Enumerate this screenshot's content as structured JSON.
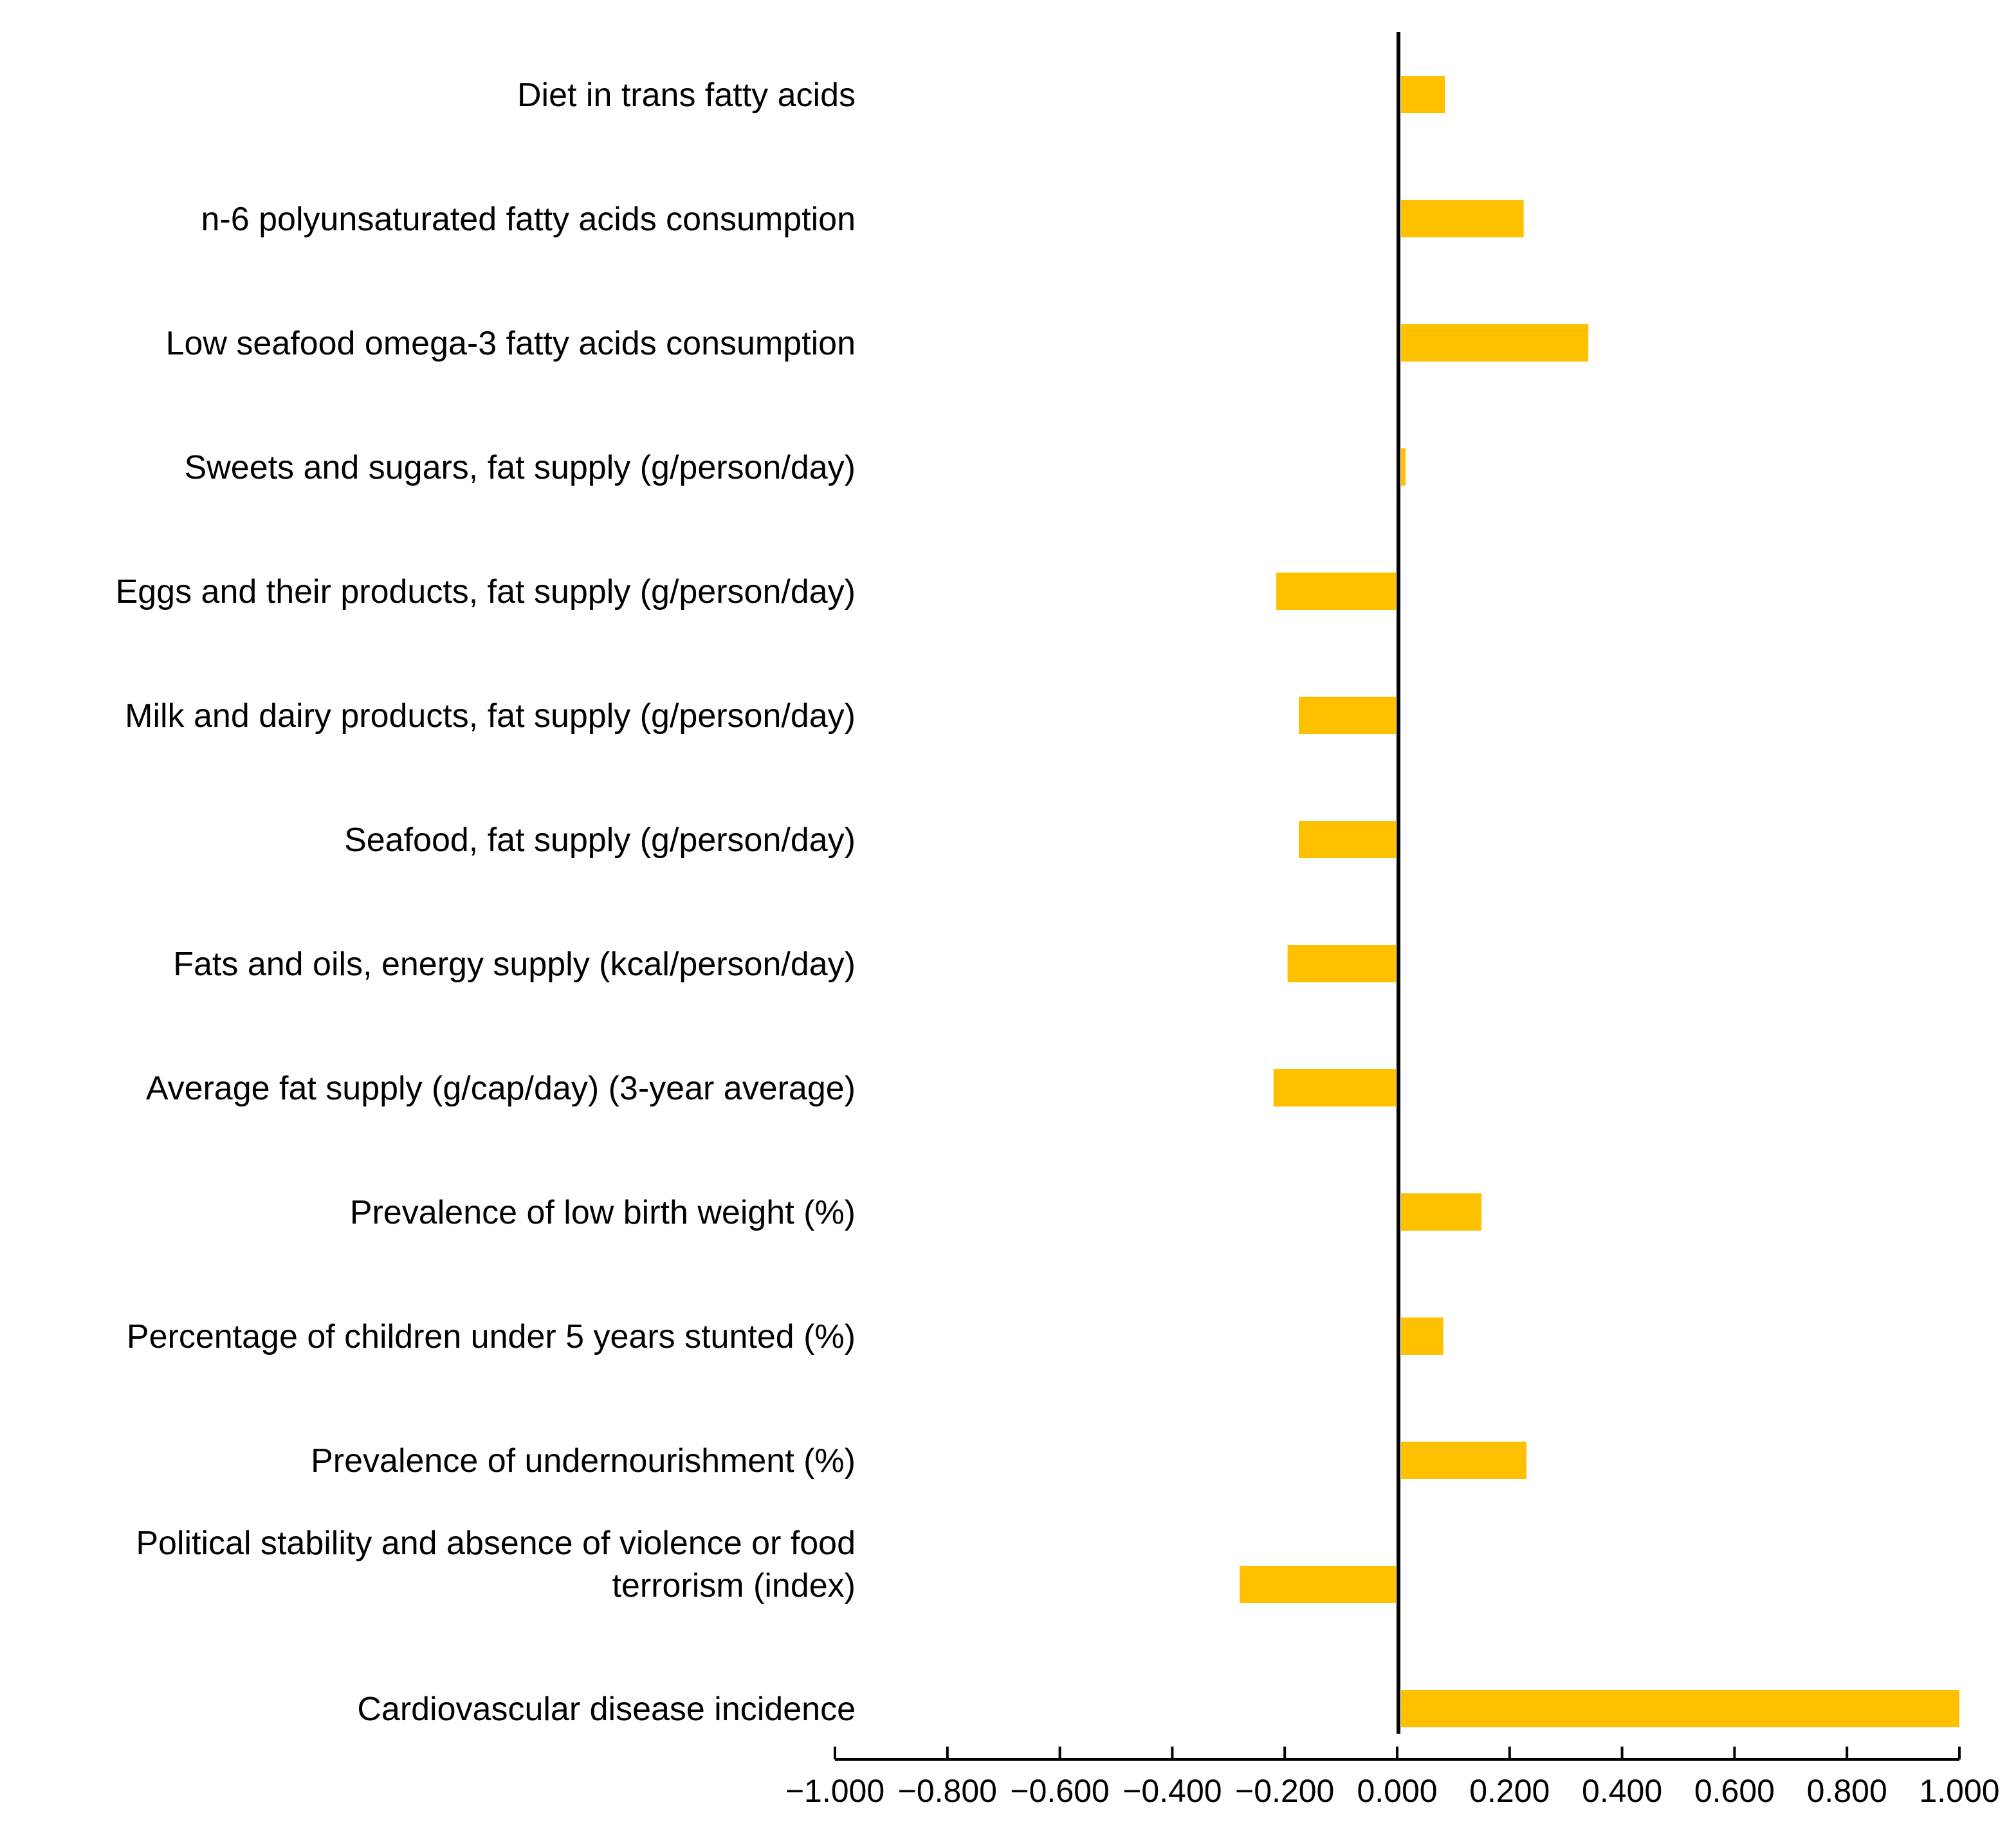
{
  "chart_data": {
    "type": "bar",
    "orientation": "horizontal",
    "title": "",
    "xlabel": "",
    "ylabel": "",
    "xlim": [
      -1.0,
      1.0
    ],
    "grid": false,
    "legend": "none",
    "bar_color": "#FFC000",
    "categories": [
      [
        "Diet in trans fatty acids"
      ],
      [
        "n-6 polyunsaturated fatty acids consumption"
      ],
      [
        "Low seafood omega-3 fatty acids consumption"
      ],
      [
        "Sweets and sugars, fat supply (g/person/day)"
      ],
      [
        "Eggs and their products, fat supply (g/person/day)"
      ],
      [
        "Milk and dairy products, fat supply (g/person/day)"
      ],
      [
        "Seafood, fat supply (g/person/day)"
      ],
      [
        "Fats and oils, energy supply (kcal/person/day)"
      ],
      [
        "Average fat supply (g/cap/day) (3-year average)"
      ],
      [
        "Prevalence of low birth weight (%)"
      ],
      [
        "Percentage of children under 5 years stunted (%)"
      ],
      [
        "Prevalence of undernourishment (%)"
      ],
      [
        "Political stability and absence of violence or food",
        "terrorism (index)"
      ],
      [
        "Cardiovascular disease incidence"
      ]
    ],
    "values": [
      0.085,
      0.225,
      0.34,
      0.015,
      -0.215,
      -0.175,
      -0.175,
      -0.195,
      -0.22,
      0.15,
      0.082,
      0.23,
      -0.28,
      1.0
    ],
    "x_ticks": [
      "-1.000",
      "-0.800",
      "-0.600",
      "-0.400",
      "-0.200",
      "0.000",
      "0.200",
      "0.400",
      "0.600",
      "0.800",
      "1.000"
    ]
  }
}
